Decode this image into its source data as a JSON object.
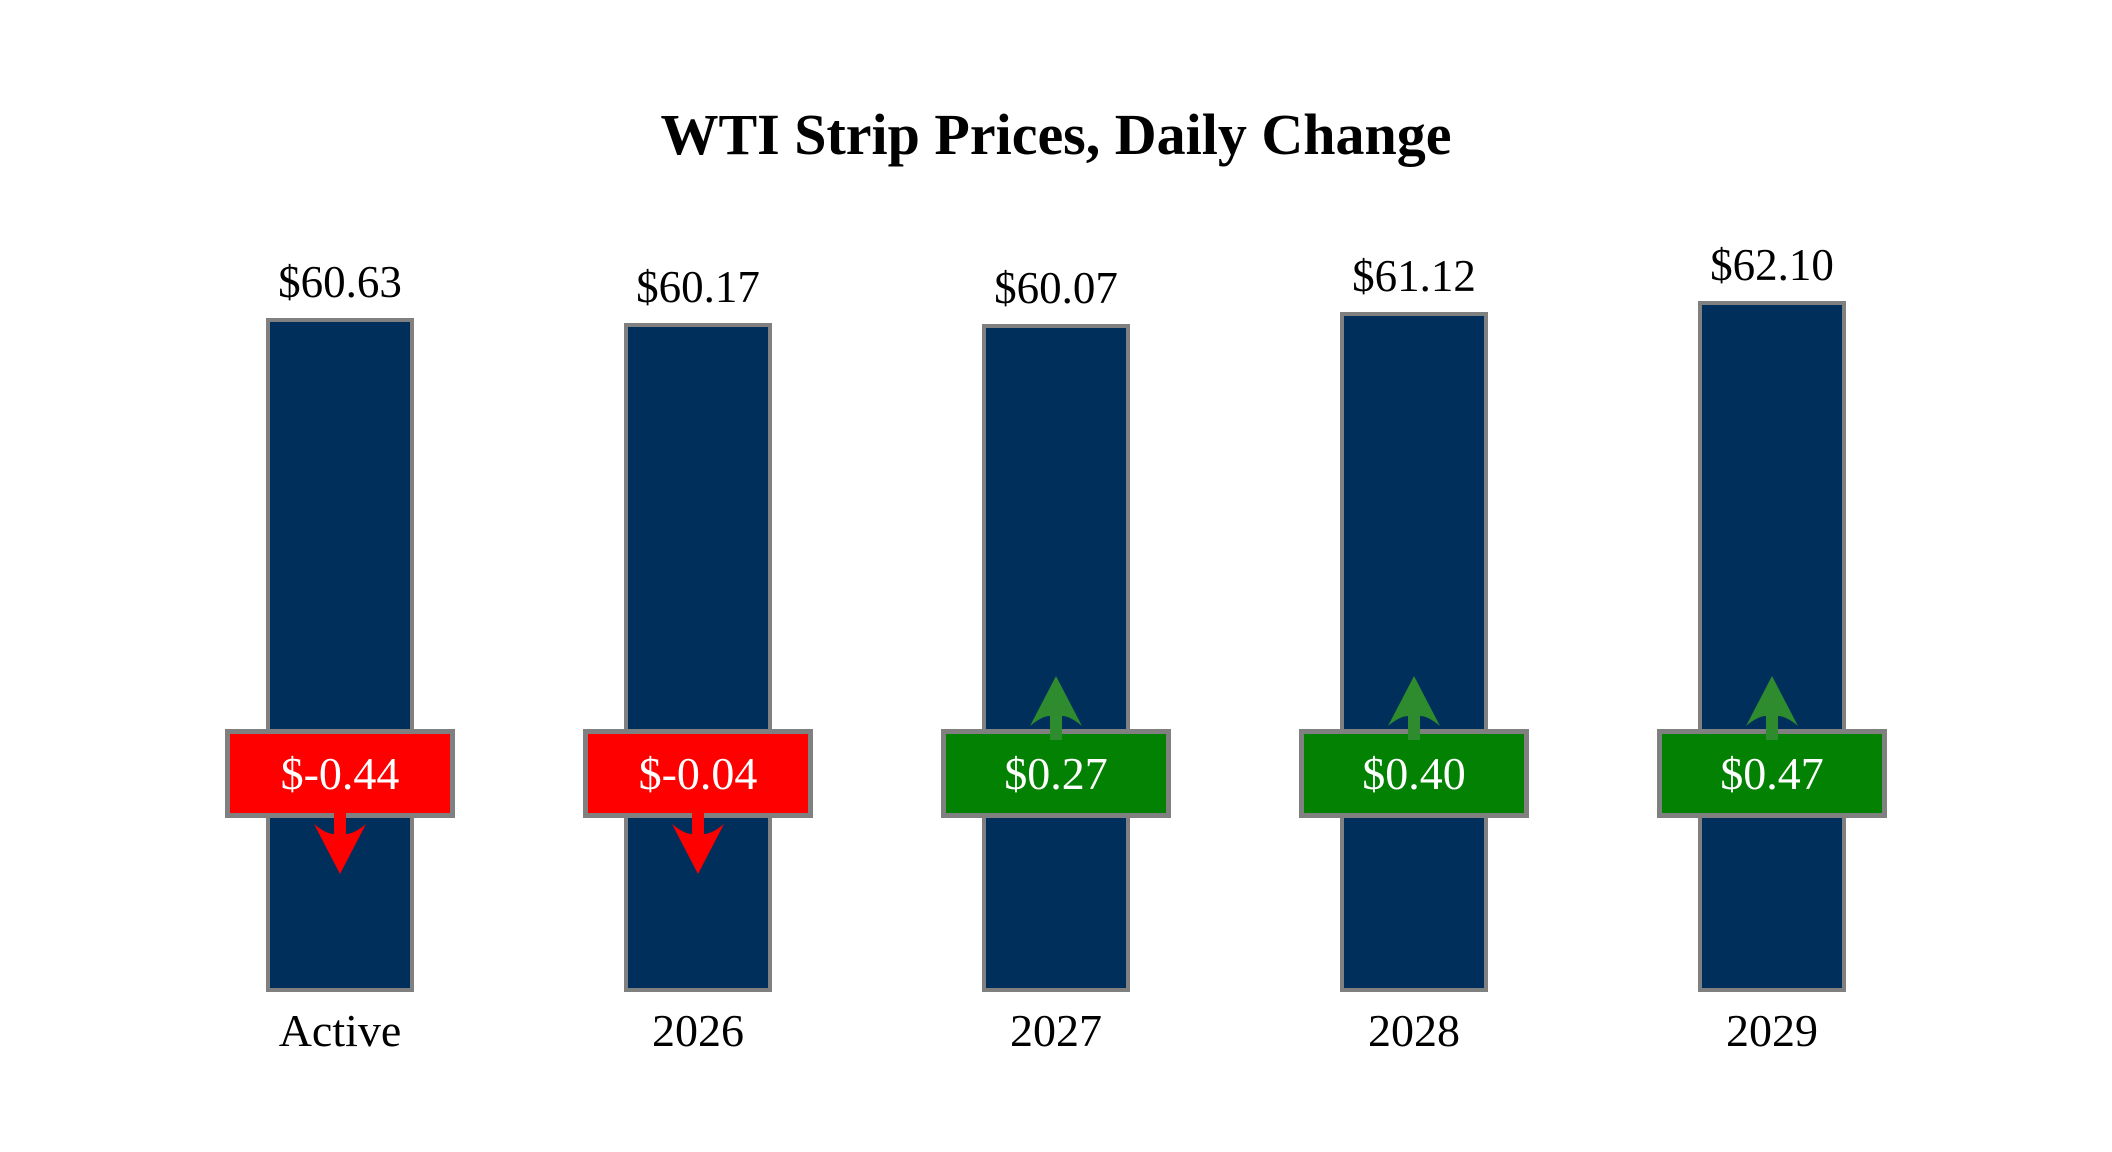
{
  "title": "WTI Strip Prices, Daily Change",
  "chart_data": {
    "type": "bar",
    "title": "WTI Strip Prices, Daily Change",
    "categories": [
      "Active",
      "2026",
      "2027",
      "2028",
      "2029"
    ],
    "series": [
      {
        "name": "strip_price",
        "values": [
          60.63,
          60.17,
          60.07,
          61.12,
          62.1
        ],
        "labels": [
          "$60.63",
          "$60.17",
          "$60.07",
          "$61.12",
          "$62.10"
        ]
      },
      {
        "name": "daily_change",
        "values": [
          -0.44,
          -0.04,
          0.27,
          0.4,
          0.47
        ],
        "labels": [
          "$-0.44",
          "$-0.04",
          "$0.27",
          "$0.40",
          "$0.47"
        ],
        "directions": [
          "down",
          "down",
          "up",
          "up",
          "up"
        ]
      }
    ],
    "ylim": [
      0,
      65
    ],
    "grid": false,
    "legend": "none",
    "colors": {
      "background": "#FFFFFF",
      "bar_fill": "#012F5C",
      "bar_border": "#808080",
      "negative_fill": "#FF0000",
      "negative_arrow": "#FF0000",
      "positive_fill": "#028102",
      "positive_arrow": "#2E8B2E",
      "box_border": "#808080",
      "label_text": "#000000",
      "badge_text": "#FFFFFF"
    }
  }
}
